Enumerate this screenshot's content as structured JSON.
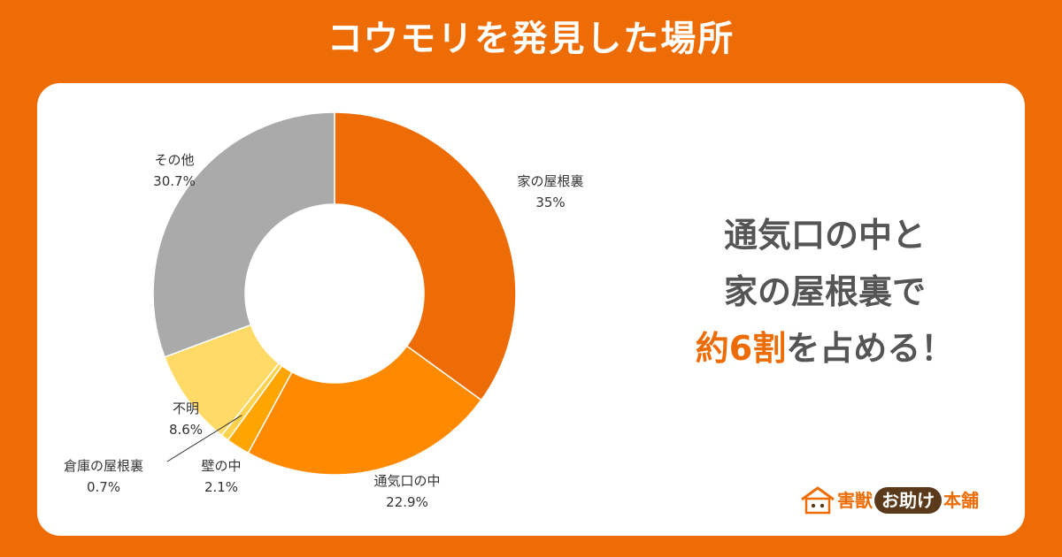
{
  "title": "コウモリを発見した場所",
  "headline": {
    "line1": "通気口の中と",
    "line2": "家の屋根裏で",
    "line3_accent": "約6割",
    "line3_rest": "を占める！"
  },
  "brand": {
    "part1": "害獣",
    "part2": "お助け",
    "part3": "本舗",
    "icon": "house-logo-icon"
  },
  "chart_data": {
    "type": "donut",
    "title": "",
    "slices": [
      {
        "label": "家の屋根裏",
        "value": 35,
        "value_text": "35%",
        "color": "#EE6C05"
      },
      {
        "label": "通気口の中",
        "value": 22.9,
        "value_text": "22.9%",
        "color": "#FF8A00"
      },
      {
        "label": "壁の中",
        "value": 2.1,
        "value_text": "2.1%",
        "color": "#FFA500"
      },
      {
        "label": "倉庫の屋根裏",
        "value": 0.7,
        "value_text": "0.7%",
        "color": "#FFD24D"
      },
      {
        "label": "不明",
        "value": 8.6,
        "value_text": "8.6%",
        "color": "#FFDA66"
      },
      {
        "label": "その他",
        "value": 30.7,
        "value_text": "30.7%",
        "color": "#AAAAAA"
      }
    ],
    "start_angle": "top",
    "direction": "clockwise"
  }
}
